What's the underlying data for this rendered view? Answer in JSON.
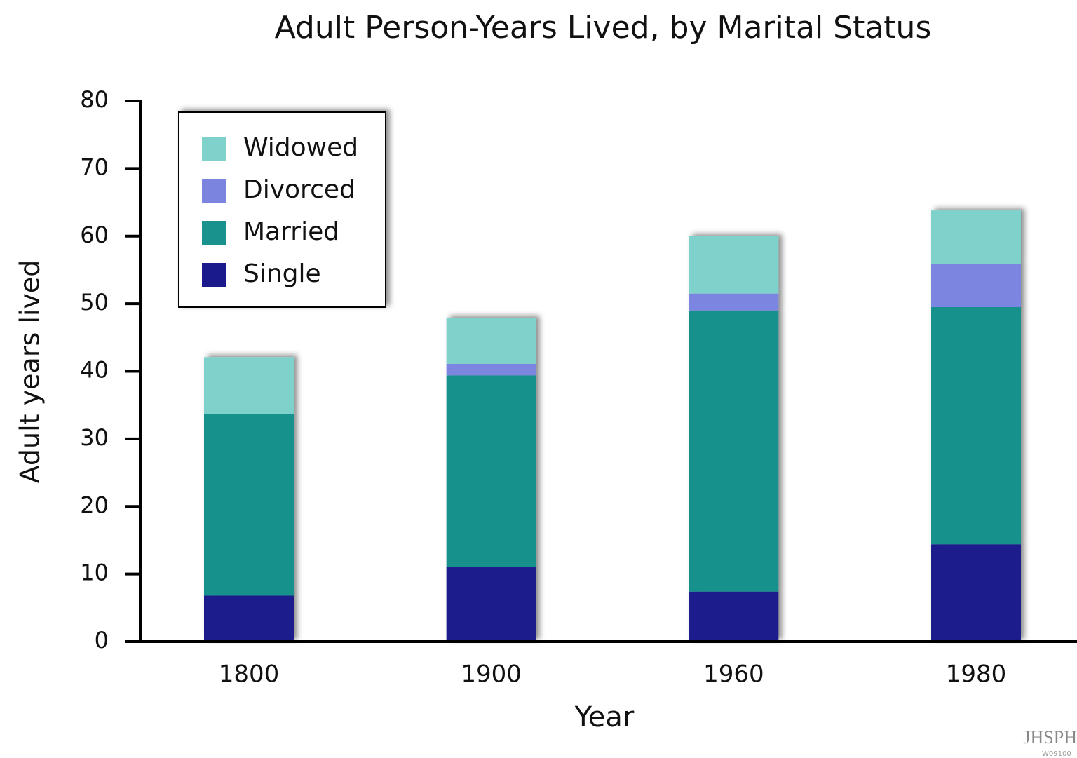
{
  "chart_data": {
    "type": "stacked_bar",
    "title": "Adult Person-Years Lived, by Marital Status",
    "x_label": "Year",
    "y_label": "Adult years lived",
    "categories": [
      "1800",
      "1900",
      "1960",
      "1980"
    ],
    "series": [
      {
        "name": "Single",
        "color": "#1a1a8c",
        "values": [
          6.8,
          11.0,
          7.4,
          14.4
        ]
      },
      {
        "name": "Married",
        "color": "#19918c",
        "values": [
          26.9,
          28.4,
          41.6,
          35.1
        ]
      },
      {
        "name": "Divorced",
        "color": "#7b85e0",
        "values": [
          0,
          1.7,
          2.5,
          6.4
        ]
      },
      {
        "name": "Widowed",
        "color": "#7fd1cb",
        "values": [
          8.4,
          6.8,
          8.5,
          7.9
        ]
      }
    ],
    "ylim": [
      0,
      80
    ],
    "yticks": [
      0,
      10,
      20,
      30,
      40,
      50,
      60,
      70,
      80
    ],
    "legend": "upper left",
    "logo": "JHSPH",
    "code": "W09100"
  }
}
